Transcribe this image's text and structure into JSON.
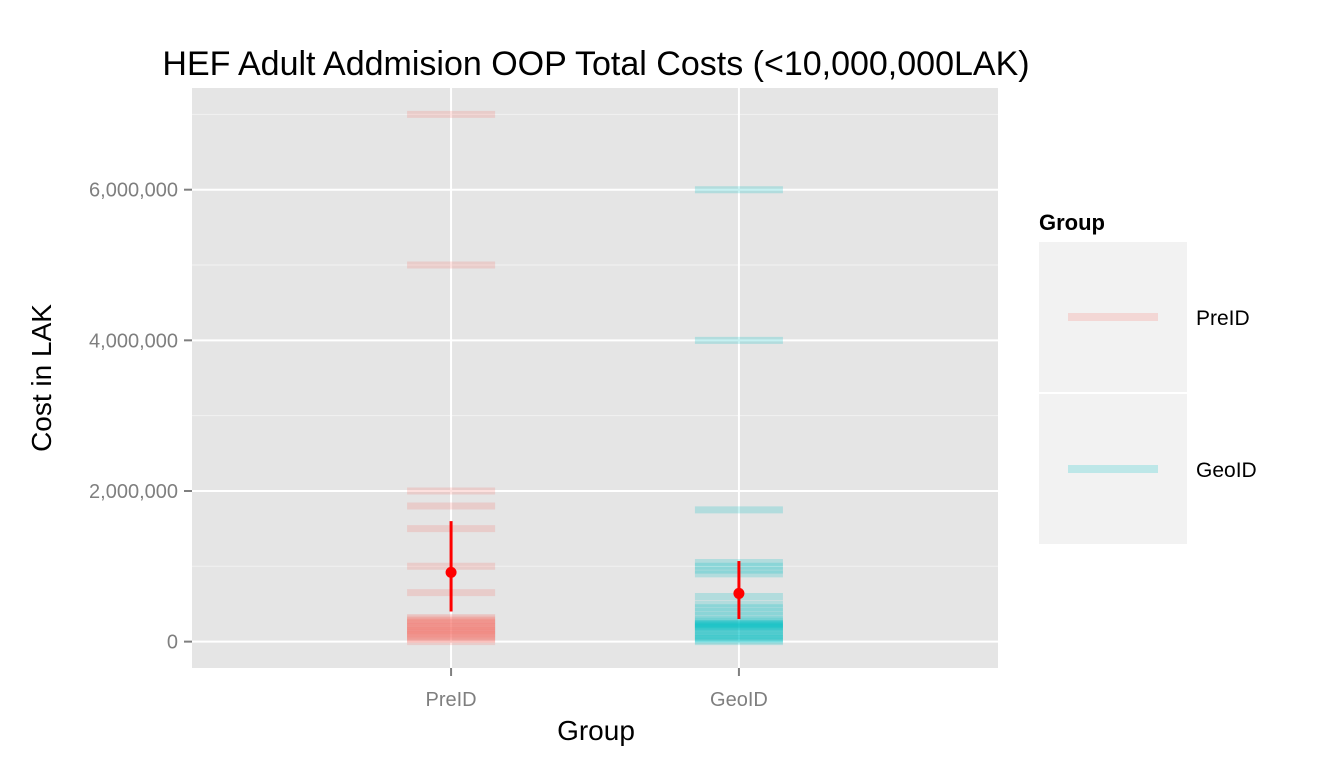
{
  "chart_data": {
    "type": "scatter",
    "title": "HEF Adult Addmision OOP Total Costs (<10,000,000LAK)",
    "xlabel": "Group",
    "ylabel": "Cost in LAK",
    "categories": [
      "PreID",
      "GeoID"
    ],
    "ylim": [
      -350000,
      7350000
    ],
    "y_ticks": [
      0,
      2000000,
      4000000,
      6000000
    ],
    "y_tick_labels": [
      "0",
      "2,000,000",
      "4,000,000",
      "6,000,000"
    ],
    "grid": true,
    "legend": {
      "title": "Group",
      "position": "right",
      "entries": [
        "PreID",
        "GeoID"
      ]
    },
    "series": [
      {
        "name": "PreID",
        "color": "#F8766D",
        "values": [
          0,
          30000,
          50000,
          70000,
          90000,
          100000,
          120000,
          140000,
          150000,
          160000,
          180000,
          200000,
          210000,
          230000,
          250000,
          260000,
          280000,
          300000,
          320000,
          650000,
          1000000,
          1500000,
          1800000,
          2000000,
          5000000,
          7000000
        ]
      },
      {
        "name": "GeoID",
        "color": "#00BFC4",
        "values": [
          0,
          20000,
          40000,
          60000,
          80000,
          100000,
          120000,
          150000,
          170000,
          190000,
          200000,
          210000,
          220000,
          230000,
          240000,
          250000,
          270000,
          300000,
          350000,
          400000,
          450000,
          500000,
          600000,
          900000,
          950000,
          1000000,
          1050000,
          1750000,
          4000000,
          6000000
        ]
      }
    ],
    "summary": [
      {
        "group": "PreID",
        "mean": 920000,
        "ymin": 400000,
        "ymax": 1600000,
        "color": "#FF0000"
      },
      {
        "group": "GeoID",
        "mean": 640000,
        "ymin": 300000,
        "ymax": 1070000,
        "color": "#FF0000"
      }
    ]
  }
}
